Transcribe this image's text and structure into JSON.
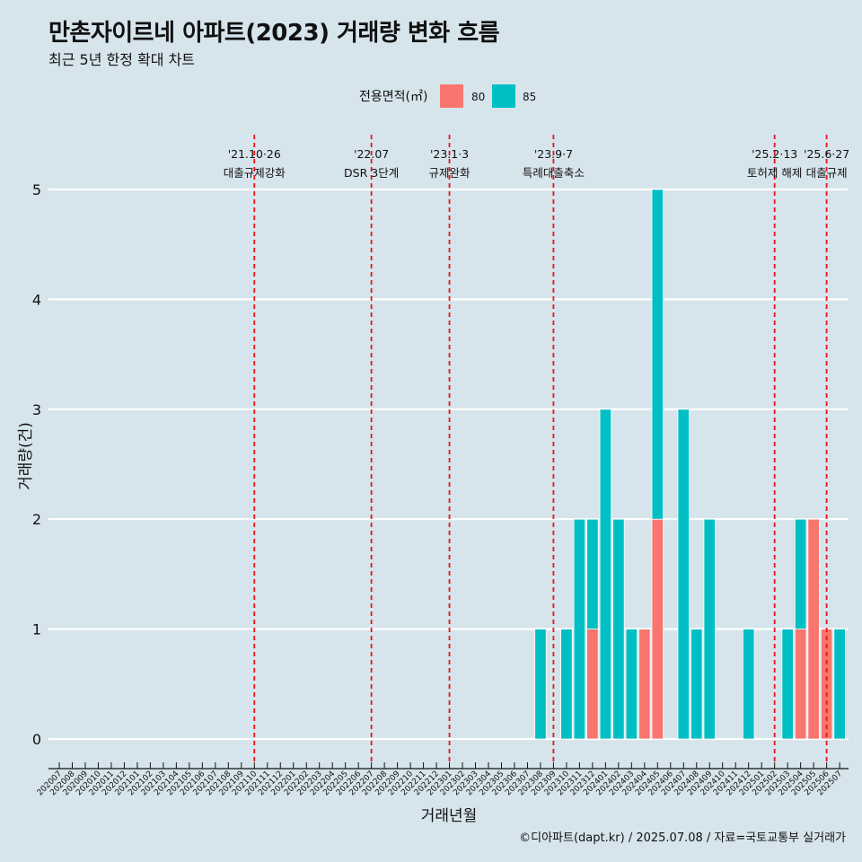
{
  "title": "만촌자이르네 아파트(2023) 거래량 변화 흐름",
  "subtitle": "최근 5년 한정 확대 차트",
  "caption": "©디아파트(dapt.kr) / 2025.07.08 / 자료=국토교통부 실거래가",
  "colors": {
    "80": "#f8766d",
    "85": "#00bfc4",
    "vline": "#e8141b",
    "grid": "#ffffff",
    "background": "#d6e4ec"
  },
  "chart_data": {
    "type": "bar",
    "stacked": true,
    "xlabel": "거래년월",
    "ylabel": "거래량(건)",
    "ylim": [
      0,
      5
    ],
    "yticks": [
      0,
      1,
      2,
      3,
      4,
      5
    ],
    "legend": {
      "title": "전용면적(㎡)",
      "position": "top",
      "entries": [
        "80",
        "85"
      ]
    },
    "categories": [
      "202007",
      "202008",
      "202009",
      "202010",
      "202011",
      "202012",
      "202101",
      "202102",
      "202103",
      "202104",
      "202105",
      "202106",
      "202107",
      "202108",
      "202109",
      "202110",
      "202111",
      "202112",
      "202201",
      "202202",
      "202203",
      "202204",
      "202205",
      "202206",
      "202207",
      "202208",
      "202209",
      "202210",
      "202211",
      "202212",
      "202301",
      "202302",
      "202303",
      "202304",
      "202305",
      "202306",
      "202307",
      "202308",
      "202309",
      "202310",
      "202311",
      "202312",
      "202401",
      "202402",
      "202403",
      "202404",
      "202405",
      "202406",
      "202407",
      "202408",
      "202409",
      "202410",
      "202411",
      "202412",
      "202501",
      "202502",
      "202503",
      "202504",
      "202505",
      "202506",
      "202507"
    ],
    "bars": [
      {
        "month": "202308",
        "seg": 0,
        "area": "85",
        "value": 1
      },
      {
        "month": "202310",
        "seg": 0,
        "area": "85",
        "value": 1
      },
      {
        "month": "202311",
        "seg": 0,
        "area": "85",
        "value": 2
      },
      {
        "month": "202312",
        "seg": 0,
        "area": "80",
        "value": 1
      },
      {
        "month": "202312",
        "seg": 1,
        "area": "85",
        "value": 2
      },
      {
        "month": "202401",
        "seg": 0,
        "area": "85",
        "value": 3
      },
      {
        "month": "202402",
        "seg": 0,
        "area": "85",
        "value": 2
      },
      {
        "month": "202403",
        "seg": 0,
        "area": "85",
        "value": 1
      },
      {
        "month": "202404",
        "seg": 0,
        "area": "80",
        "value": 1
      },
      {
        "month": "202404",
        "seg": 1,
        "area": "85",
        "value": 1
      },
      {
        "month": "202405",
        "seg": 0,
        "area": "80",
        "value": 2
      },
      {
        "month": "202405",
        "seg": 1,
        "area": "85",
        "value": 5
      },
      {
        "month": "202407",
        "seg": 0,
        "area": "85",
        "value": 3
      },
      {
        "month": "202408",
        "seg": 0,
        "area": "85",
        "value": 1
      },
      {
        "month": "202409",
        "seg": 0,
        "area": "85",
        "value": 2
      },
      {
        "month": "202412",
        "seg": 0,
        "area": "85",
        "value": 1
      },
      {
        "month": "202503",
        "seg": 0,
        "area": "85",
        "value": 1
      },
      {
        "month": "202504",
        "seg": 0,
        "area": "80",
        "value": 1
      },
      {
        "month": "202504",
        "seg": 1,
        "area": "85",
        "value": 2
      },
      {
        "month": "202505",
        "seg": 0,
        "area": "80",
        "value": 2
      },
      {
        "month": "202505",
        "seg": 1,
        "area": "85",
        "value": 1
      },
      {
        "month": "202506",
        "seg": 0,
        "area": "80",
        "value": 1
      },
      {
        "month": "202506",
        "seg": 1,
        "area": "85",
        "value": 1
      },
      {
        "month": "202507",
        "seg": 0,
        "area": "85",
        "value": 1
      }
    ],
    "annotations": [
      {
        "month": "202110",
        "date": "'21.10·26",
        "text": "대출규제강화"
      },
      {
        "month": "202207",
        "date": "'22.07",
        "text": "DSR 3단계"
      },
      {
        "month": "202301",
        "date": "'23.1·3",
        "text": "규제완화"
      },
      {
        "month": "202309",
        "date": "'23.9·7",
        "text": "특례대출축소"
      },
      {
        "month": "202502",
        "date": "'25.2·13",
        "text": "토허제 해제"
      },
      {
        "month": "202506",
        "date": "'25.6·27",
        "text": "대출규제"
      }
    ]
  }
}
